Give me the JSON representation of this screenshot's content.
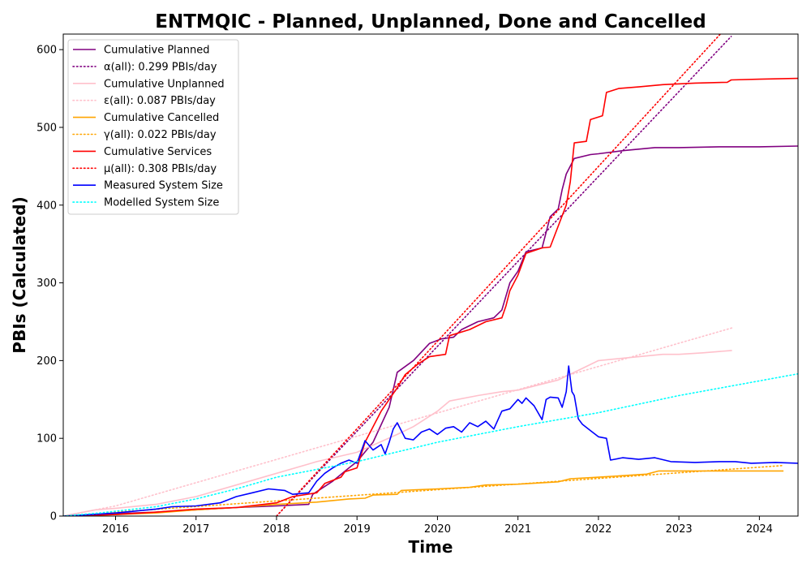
{
  "chart_data": {
    "type": "line",
    "title": "ENTMQIC - Planned, Unplanned, Done  and Cancelled",
    "xlabel": "Time",
    "ylabel": "PBIs (Calculated)",
    "xlim": [
      2015.35,
      2024.48
    ],
    "ylim": [
      0,
      620
    ],
    "x_ticks": [
      2016,
      2017,
      2018,
      2019,
      2020,
      2021,
      2022,
      2023,
      2024
    ],
    "y_ticks": [
      0,
      100,
      200,
      300,
      400,
      500,
      600
    ],
    "grid": false,
    "legend_position": "top-left",
    "series": [
      {
        "name": "Cumulative Planned",
        "style": "solid",
        "color": "#800080",
        "points": [
          [
            2015.35,
            0
          ],
          [
            2015.7,
            1
          ],
          [
            2016.0,
            3
          ],
          [
            2016.5,
            5
          ],
          [
            2017.0,
            8
          ],
          [
            2017.5,
            11
          ],
          [
            2018.0,
            13
          ],
          [
            2018.4,
            15
          ],
          [
            2018.45,
            28
          ],
          [
            2018.7,
            45
          ],
          [
            2018.9,
            62
          ],
          [
            2019.0,
            70
          ],
          [
            2019.2,
            95
          ],
          [
            2019.4,
            140
          ],
          [
            2019.5,
            185
          ],
          [
            2019.7,
            200
          ],
          [
            2019.9,
            222
          ],
          [
            2020.05,
            228
          ],
          [
            2020.2,
            230
          ],
          [
            2020.3,
            240
          ],
          [
            2020.5,
            250
          ],
          [
            2020.7,
            255
          ],
          [
            2020.8,
            265
          ],
          [
            2020.9,
            300
          ],
          [
            2021.0,
            315
          ],
          [
            2021.1,
            340
          ],
          [
            2021.3,
            345
          ],
          [
            2021.4,
            385
          ],
          [
            2021.5,
            395
          ],
          [
            2021.55,
            420
          ],
          [
            2021.6,
            440
          ],
          [
            2021.7,
            460
          ],
          [
            2021.9,
            465
          ],
          [
            2022.0,
            466
          ],
          [
            2022.3,
            470
          ],
          [
            2022.7,
            474
          ],
          [
            2023.0,
            474
          ],
          [
            2023.5,
            475
          ],
          [
            2024.0,
            475
          ],
          [
            2024.48,
            476
          ]
        ]
      },
      {
        "name": "α(all): 0.299 PBIs/day",
        "style": "dotted",
        "color": "#800080",
        "points": [
          [
            2018.0,
            0
          ],
          [
            2023.65,
            617
          ]
        ]
      },
      {
        "name": "Cumulative Unplanned",
        "style": "solid",
        "color": "#ffc0cb",
        "points": [
          [
            2015.35,
            0
          ],
          [
            2015.75,
            8
          ],
          [
            2016.0,
            10
          ],
          [
            2016.5,
            15
          ],
          [
            2017.0,
            25
          ],
          [
            2017.5,
            40
          ],
          [
            2018.0,
            55
          ],
          [
            2018.5,
            70
          ],
          [
            2019.0,
            82
          ],
          [
            2019.5,
            105
          ],
          [
            2019.7,
            115
          ],
          [
            2020.0,
            135
          ],
          [
            2020.15,
            148
          ],
          [
            2020.5,
            155
          ],
          [
            2020.8,
            160
          ],
          [
            2021.0,
            162
          ],
          [
            2021.5,
            175
          ],
          [
            2021.8,
            190
          ],
          [
            2022.0,
            200
          ],
          [
            2022.5,
            205
          ],
          [
            2022.8,
            208
          ],
          [
            2023.0,
            208
          ],
          [
            2023.3,
            210
          ],
          [
            2023.66,
            213
          ]
        ]
      },
      {
        "name": "ε(all): 0.087 PBIs/day",
        "style": "dotted",
        "color": "#ffc0cb",
        "points": [
          [
            2015.35,
            0
          ],
          [
            2016.0,
            13
          ],
          [
            2023.66,
            242
          ]
        ]
      },
      {
        "name": "Cumulative Cancelled",
        "style": "solid",
        "color": "#ffa500",
        "points": [
          [
            2015.35,
            0
          ],
          [
            2016.0,
            2
          ],
          [
            2016.5,
            4
          ],
          [
            2017.0,
            8
          ],
          [
            2017.5,
            11
          ],
          [
            2018.0,
            15
          ],
          [
            2018.5,
            18
          ],
          [
            2018.9,
            22
          ],
          [
            2019.1,
            23
          ],
          [
            2019.2,
            27
          ],
          [
            2019.5,
            28
          ],
          [
            2019.55,
            33
          ],
          [
            2020.0,
            35
          ],
          [
            2020.4,
            37
          ],
          [
            2020.6,
            40
          ],
          [
            2021.0,
            41
          ],
          [
            2021.5,
            44
          ],
          [
            2021.65,
            48
          ],
          [
            2022.0,
            50
          ],
          [
            2022.3,
            52
          ],
          [
            2022.6,
            54
          ],
          [
            2022.75,
            58
          ],
          [
            2023.0,
            58
          ],
          [
            2023.5,
            58
          ],
          [
            2024.0,
            58
          ],
          [
            2024.3,
            58
          ]
        ]
      },
      {
        "name": "γ(all): 0.022 PBIs/day",
        "style": "dotted",
        "color": "#ffa500",
        "points": [
          [
            2015.35,
            0
          ],
          [
            2016.0,
            5
          ],
          [
            2024.3,
            65
          ]
        ]
      },
      {
        "name": "Cumulative Services",
        "style": "solid",
        "color": "#ff0000",
        "points": [
          [
            2015.35,
            0
          ],
          [
            2016.0,
            2
          ],
          [
            2016.5,
            5
          ],
          [
            2017.0,
            9
          ],
          [
            2017.5,
            11
          ],
          [
            2018.0,
            17
          ],
          [
            2018.2,
            25
          ],
          [
            2018.5,
            30
          ],
          [
            2018.6,
            42
          ],
          [
            2018.8,
            50
          ],
          [
            2018.85,
            57
          ],
          [
            2019.0,
            62
          ],
          [
            2019.1,
            95
          ],
          [
            2019.3,
            135
          ],
          [
            2019.5,
            165
          ],
          [
            2019.6,
            182
          ],
          [
            2019.75,
            195
          ],
          [
            2019.9,
            205
          ],
          [
            2020.1,
            208
          ],
          [
            2020.15,
            232
          ],
          [
            2020.4,
            240
          ],
          [
            2020.6,
            250
          ],
          [
            2020.8,
            255
          ],
          [
            2020.85,
            270
          ],
          [
            2020.9,
            290
          ],
          [
            2021.0,
            310
          ],
          [
            2021.1,
            338
          ],
          [
            2021.3,
            345
          ],
          [
            2021.4,
            346
          ],
          [
            2021.6,
            400
          ],
          [
            2021.65,
            430
          ],
          [
            2021.7,
            480
          ],
          [
            2021.85,
            482
          ],
          [
            2021.9,
            510
          ],
          [
            2022.05,
            515
          ],
          [
            2022.1,
            545
          ],
          [
            2022.25,
            550
          ],
          [
            2022.5,
            552
          ],
          [
            2022.8,
            555
          ],
          [
            2023.2,
            557
          ],
          [
            2023.6,
            558
          ],
          [
            2023.65,
            561
          ],
          [
            2024.0,
            562
          ],
          [
            2024.48,
            563
          ]
        ]
      },
      {
        "name": "μ(all): 0.308 PBIs/day",
        "style": "dotted",
        "color": "#ff0000",
        "points": [
          [
            2018.0,
            0
          ],
          [
            2023.55,
            624
          ]
        ]
      },
      {
        "name": "Measured System Size",
        "style": "solid",
        "color": "#0000ff",
        "points": [
          [
            2015.35,
            0
          ],
          [
            2015.7,
            2
          ],
          [
            2016.0,
            4
          ],
          [
            2016.3,
            7
          ],
          [
            2016.5,
            9
          ],
          [
            2016.7,
            12
          ],
          [
            2017.0,
            13
          ],
          [
            2017.3,
            17
          ],
          [
            2017.5,
            25
          ],
          [
            2017.7,
            30
          ],
          [
            2017.9,
            35
          ],
          [
            2018.1,
            33
          ],
          [
            2018.2,
            28
          ],
          [
            2018.4,
            30
          ],
          [
            2018.5,
            45
          ],
          [
            2018.6,
            55
          ],
          [
            2018.7,
            62
          ],
          [
            2018.8,
            68
          ],
          [
            2018.9,
            72
          ],
          [
            2019.0,
            68
          ],
          [
            2019.1,
            97
          ],
          [
            2019.2,
            85
          ],
          [
            2019.3,
            92
          ],
          [
            2019.35,
            80
          ],
          [
            2019.4,
            95
          ],
          [
            2019.45,
            112
          ],
          [
            2019.5,
            120
          ],
          [
            2019.6,
            100
          ],
          [
            2019.7,
            98
          ],
          [
            2019.8,
            108
          ],
          [
            2019.9,
            112
          ],
          [
            2020.0,
            105
          ],
          [
            2020.1,
            113
          ],
          [
            2020.2,
            115
          ],
          [
            2020.3,
            108
          ],
          [
            2020.4,
            120
          ],
          [
            2020.5,
            115
          ],
          [
            2020.6,
            122
          ],
          [
            2020.7,
            112
          ],
          [
            2020.8,
            135
          ],
          [
            2020.9,
            138
          ],
          [
            2021.0,
            150
          ],
          [
            2021.05,
            145
          ],
          [
            2021.1,
            152
          ],
          [
            2021.2,
            142
          ],
          [
            2021.3,
            124
          ],
          [
            2021.35,
            150
          ],
          [
            2021.4,
            153
          ],
          [
            2021.5,
            152
          ],
          [
            2021.55,
            140
          ],
          [
            2021.6,
            160
          ],
          [
            2021.63,
            193
          ],
          [
            2021.67,
            160
          ],
          [
            2021.7,
            155
          ],
          [
            2021.75,
            125
          ],
          [
            2021.8,
            118
          ],
          [
            2021.9,
            110
          ],
          [
            2022.0,
            102
          ],
          [
            2022.1,
            100
          ],
          [
            2022.15,
            72
          ],
          [
            2022.3,
            75
          ],
          [
            2022.5,
            73
          ],
          [
            2022.7,
            75
          ],
          [
            2022.9,
            70
          ],
          [
            2023.2,
            69
          ],
          [
            2023.5,
            70
          ],
          [
            2023.7,
            70
          ],
          [
            2023.9,
            68
          ],
          [
            2024.2,
            69
          ],
          [
            2024.48,
            68
          ]
        ]
      },
      {
        "name": "Modelled System Size",
        "style": "dotted",
        "color": "#00ffff",
        "points": [
          [
            2015.35,
            0
          ],
          [
            2015.8,
            4
          ],
          [
            2016.5,
            12
          ],
          [
            2017.0,
            22
          ],
          [
            2017.5,
            35
          ],
          [
            2018.0,
            50
          ],
          [
            2019.0,
            70
          ],
          [
            2020.0,
            95
          ],
          [
            2021.0,
            115
          ],
          [
            2022.0,
            133
          ],
          [
            2023.0,
            155
          ],
          [
            2024.48,
            183
          ]
        ]
      }
    ]
  }
}
